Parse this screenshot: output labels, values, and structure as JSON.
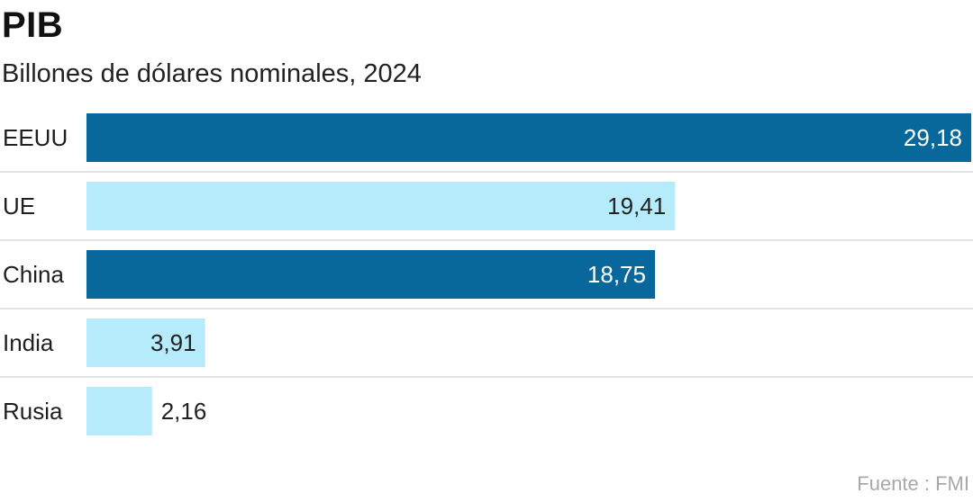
{
  "chart_data": {
    "type": "bar",
    "orientation": "horizontal",
    "title": "PIB",
    "subtitle": "Billones de dólares nominales, 2024",
    "categories": [
      "EEUU",
      "UE",
      "China",
      "India",
      "Rusia"
    ],
    "values": [
      29.18,
      19.41,
      18.75,
      3.91,
      2.16
    ],
    "value_labels": [
      "29,18",
      "19,41",
      "18,75",
      "3,91",
      "2,16"
    ],
    "bar_colors": [
      "#08689c",
      "#b5ebfb",
      "#08689c",
      "#b5ebfb",
      "#b5ebfb"
    ],
    "label_colors": [
      "#ffffff",
      "#222222",
      "#ffffff",
      "#222222",
      "#222222"
    ],
    "xlim": [
      0,
      29.18
    ],
    "grid": false,
    "legend": "none",
    "source": "Fuente : FMI"
  }
}
